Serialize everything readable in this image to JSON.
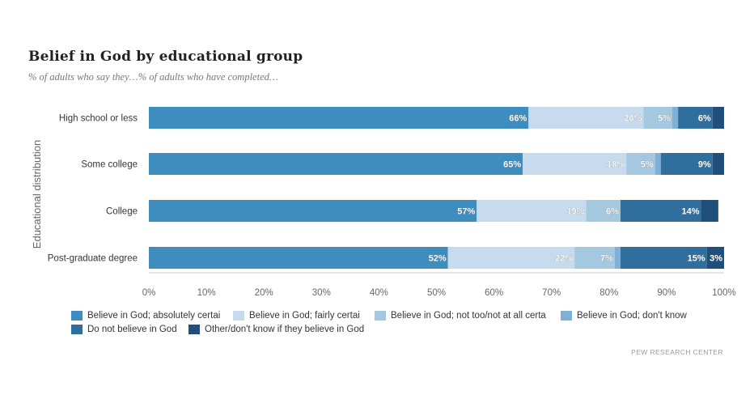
{
  "header": {
    "title": "Belief in God by educational group",
    "subtitle": "% of adults who say they…% of adults who have completed…"
  },
  "source": "PEW RESEARCH CENTER",
  "chart_data": {
    "type": "bar",
    "orientation": "horizontal",
    "stacked": true,
    "ylabel": "Educational distribution",
    "xlabel": "",
    "xlim": [
      0,
      100
    ],
    "x_ticks": [
      "0%",
      "10%",
      "20%",
      "30%",
      "40%",
      "50%",
      "60%",
      "70%",
      "80%",
      "90%",
      "100%"
    ],
    "categories": [
      "High school or less",
      "Some college",
      "College",
      "Post-graduate degree"
    ],
    "series": [
      {
        "name": "Believe in God; absolutely certain",
        "legend_label": "Believe in God; absolutely certai",
        "color": "#3f8dbf",
        "values": [
          66,
          65,
          57,
          52
        ],
        "labels": [
          "66%",
          "65%",
          "57%",
          "52%"
        ]
      },
      {
        "name": "Believe in God; fairly certain",
        "legend_label": "Believe in God; fairly certai",
        "color": "#c6dbed",
        "values": [
          20,
          18,
          19,
          22
        ],
        "labels": [
          "20%",
          "18%",
          "19%",
          "22%"
        ]
      },
      {
        "name": "Believe in God; not too/not at all certain",
        "legend_label": "Believe in God; not too/not at all certa",
        "color": "#a4c8e0",
        "values": [
          5,
          5,
          6,
          7
        ],
        "labels": [
          "5%",
          "5%",
          "6%",
          "7%"
        ]
      },
      {
        "name": "Believe in God; don't know",
        "legend_label": "Believe in God; don't know",
        "color": "#7fb0d6",
        "values": [
          1,
          1,
          0,
          1
        ],
        "labels": [
          "",
          "",
          "",
          ""
        ]
      },
      {
        "name": "Do not believe in God",
        "legend_label": "Do not believe in God",
        "color": "#2f6e9d",
        "values": [
          6,
          9,
          14,
          15
        ],
        "labels": [
          "6%",
          "9%",
          "14%",
          "15%"
        ]
      },
      {
        "name": "Other/don't know if they believe in God",
        "legend_label": "Other/don't know if they believe in God",
        "color": "#1f4f7a",
        "values": [
          2,
          2,
          3,
          3
        ],
        "labels": [
          "",
          "",
          "",
          "3%"
        ]
      }
    ],
    "legend_position": "bottom",
    "grid": false
  }
}
